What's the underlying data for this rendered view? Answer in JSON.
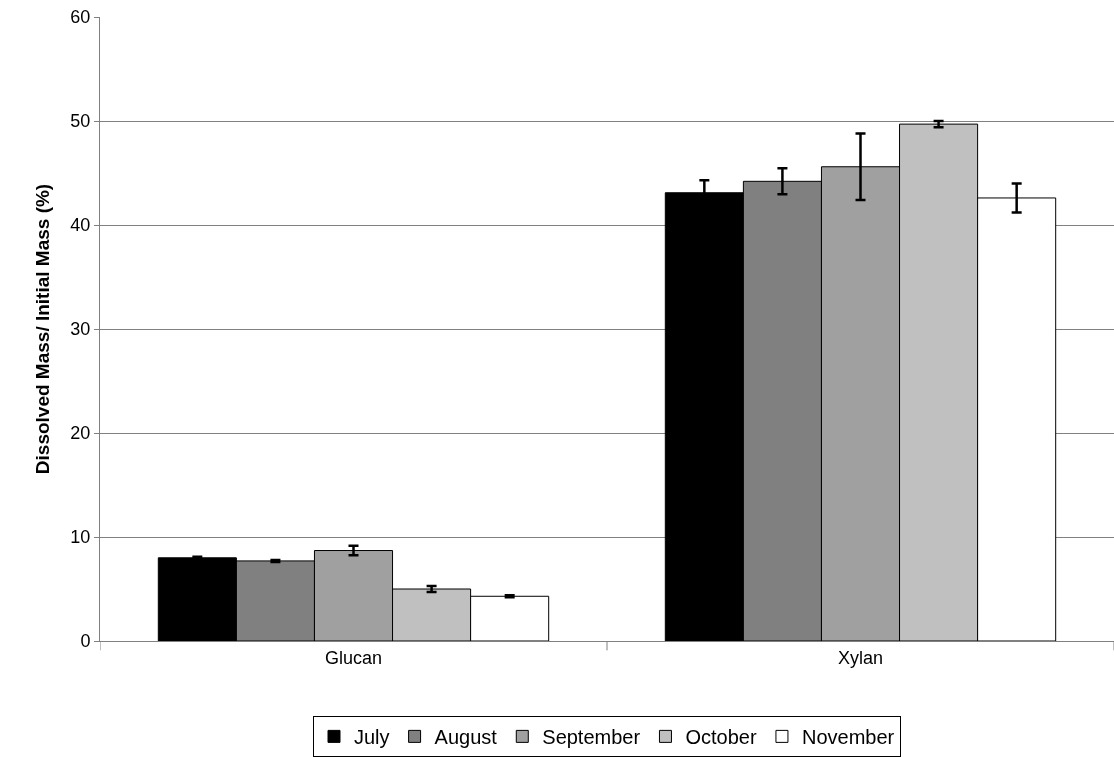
{
  "chart_data": {
    "type": "bar",
    "ylabel": "Dissolved Mass/ Initial Mass (%)",
    "categories": [
      "Glucan",
      "Xylan"
    ],
    "series": [
      {
        "name": "July",
        "color": "#000000",
        "values": [
          8.0,
          43.1
        ],
        "errors": [
          0.1,
          1.2
        ]
      },
      {
        "name": "August",
        "color": "#808080",
        "values": [
          7.7,
          44.2
        ],
        "errors": [
          0.1,
          1.25
        ]
      },
      {
        "name": "September",
        "color": "#a0a0a0",
        "values": [
          8.7,
          45.6
        ],
        "errors": [
          0.45,
          3.2
        ]
      },
      {
        "name": "October",
        "color": "#c0c0c0",
        "values": [
          5.0,
          49.7
        ],
        "errors": [
          0.3,
          0.3
        ]
      },
      {
        "name": "November",
        "color": "#ffffff",
        "values": [
          4.3,
          42.6
        ],
        "errors": [
          0.1,
          1.4
        ]
      }
    ],
    "ylim": [
      0,
      60
    ],
    "yticks": [
      0,
      10,
      20,
      30,
      40,
      50,
      60
    ],
    "grid": "y",
    "legend": "bottom"
  }
}
